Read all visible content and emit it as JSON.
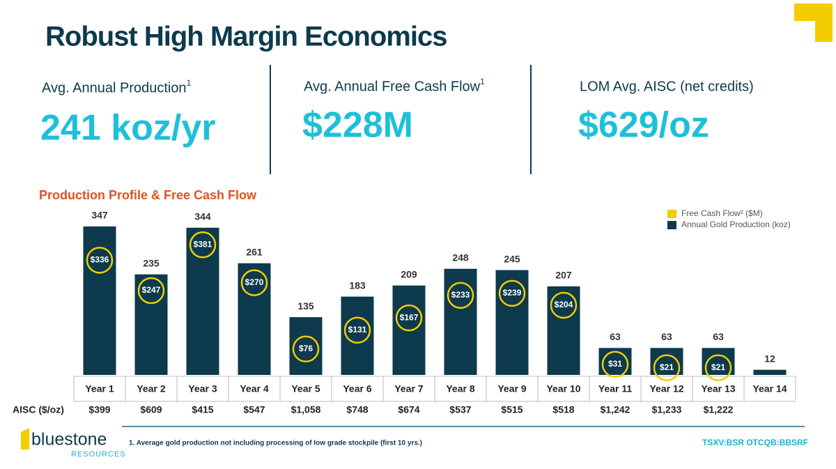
{
  "header": {
    "title": "Robust High Margin Economics"
  },
  "kpis": [
    {
      "label": "Avg. Annual Production",
      "sup": "1",
      "value": "241 koz/yr"
    },
    {
      "label": "Avg. Annual Free Cash Flow",
      "sup": "1",
      "value": "$228M"
    },
    {
      "label": "LOM Avg. AISC (net credits)",
      "value": "$629/oz"
    }
  ],
  "chart_data": {
    "type": "bar",
    "title": "Production Profile & Free Cash Flow",
    "categories": [
      "Year 1",
      "Year 2",
      "Year 3",
      "Year 4",
      "Year 5",
      "Year 6",
      "Year 7",
      "Year 8",
      "Year 9",
      "Year 10",
      "Year 11",
      "Year 12",
      "Year 13",
      "Year 14"
    ],
    "series": [
      {
        "name": "Annual Gold Production (koz)",
        "color": "#0d3a4c",
        "values": [
          347,
          235,
          344,
          261,
          135,
          183,
          209,
          248,
          245,
          207,
          63,
          63,
          63,
          12
        ]
      },
      {
        "name": "Free Cash Flow² ($M)",
        "color": "#f3cd00",
        "values": [
          336,
          247,
          381,
          270,
          76,
          131,
          167,
          233,
          239,
          204,
          31,
          21,
          21,
          null
        ],
        "value_labels": [
          "$336",
          "$247",
          "$381",
          "$270",
          "$76",
          "$131",
          "$167",
          "$233",
          "$239",
          "$204",
          "$31",
          "$21",
          "$21",
          null
        ]
      }
    ],
    "aisc": {
      "label": "AISC ($/oz)",
      "values": [
        399,
        609,
        415,
        547,
        1058,
        748,
        674,
        537,
        515,
        518,
        1242,
        1233,
        1222,
        null
      ],
      "value_labels": [
        "$399",
        "$609",
        "$415",
        "$547",
        "$1,058",
        "$748",
        "$674",
        "$537",
        "$515",
        "$518",
        "$1,242",
        "$1,233",
        "$1,222",
        null
      ]
    }
  },
  "footnote": "1. Average gold production not including processing of low grade stockpile (first 10 yrs.)",
  "ticker": "TSXV:BSR OTCQB:BBSRF",
  "logo": {
    "name": "bluestone",
    "sub": "RESOURCES"
  }
}
